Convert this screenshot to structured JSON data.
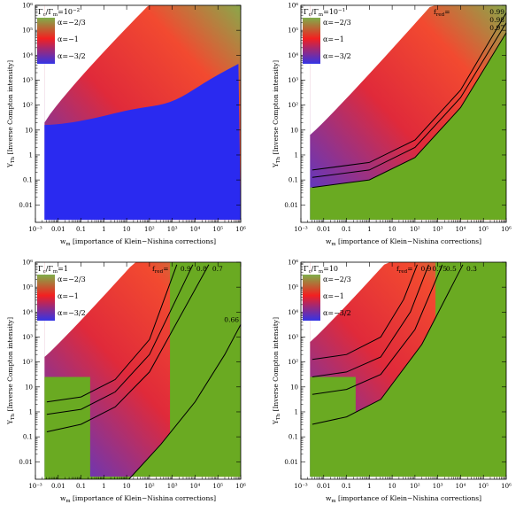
{
  "chart_data": [
    {
      "type": "heatmap",
      "panel": "top-left",
      "title": "Γc/Γm=10⁻²",
      "title_parts": {
        "g1": "Γ",
        "s1": "c",
        "sep": "/Γ",
        "s2": "m",
        "eq": "=10",
        "exp": "−2"
      },
      "xlabel": {
        "main": "w",
        "sub": "m",
        "rest": " [importance of Klein−Nishina corrections]"
      },
      "ylabel": {
        "main": "Y",
        "sub": "Th",
        "rest": " [Inverse Compton intensity]"
      },
      "x_range_log10": [
        -3,
        6
      ],
      "y_range_log10": [
        -2.7,
        6
      ],
      "x_ticks": [
        "10⁻³",
        "0.01",
        "0.1",
        "1",
        "10",
        "10²",
        "10³",
        "10⁴",
        "10⁵",
        "10⁶"
      ],
      "y_ticks": [
        "0.01",
        "0.1",
        "1",
        "10",
        "10²",
        "10³",
        "10⁴",
        "10⁵",
        "10⁶"
      ],
      "legend": [
        "α=−2/3",
        "α=−1",
        "α=−3/2"
      ],
      "legend_colors": [
        "#7fae4a",
        "#f22020",
        "#3434e6"
      ],
      "fred_label": "",
      "fred_lines": []
    },
    {
      "type": "heatmap",
      "panel": "top-right",
      "title": "Γc/Γm=10⁻¹",
      "title_parts": {
        "g1": "Γ",
        "s1": "c",
        "sep": "/Γ",
        "s2": "m",
        "eq": "=10",
        "exp": "−1"
      },
      "xlabel": {
        "main": "w",
        "sub": "m",
        "rest": " [importance of Klein−Nishina corrections]"
      },
      "ylabel": {
        "main": "Y",
        "sub": "Th",
        "rest": " [Inverse Compton intensity]"
      },
      "x_range_log10": [
        -3,
        6
      ],
      "y_range_log10": [
        -2.7,
        6
      ],
      "x_ticks": [
        "10⁻³",
        "0.01",
        "0.1",
        "1",
        "10",
        "10²",
        "10³",
        "10⁴",
        "10⁵",
        "10⁶"
      ],
      "y_ticks": [
        "0.01",
        "0.1",
        "1",
        "10",
        "10²",
        "10³",
        "10⁴",
        "10⁵",
        "10⁶"
      ],
      "legend": [
        "α=−2/3",
        "α=−1",
        "α=−3/2"
      ],
      "legend_colors": [
        "#7fae4a",
        "#f22020",
        "#3434e6"
      ],
      "fred_label": "f",
      "fred_sub": "red",
      "fred_eq": "=",
      "fred_lines": [
        {
          "label": "0.99",
          "points": [
            [
              -2.5,
              -0.6
            ],
            [
              0,
              -0.3
            ],
            [
              2,
              0.6
            ],
            [
              4,
              2.6
            ],
            [
              6,
              5.7
            ]
          ]
        },
        {
          "label": "0.98",
          "points": [
            [
              -2.5,
              -0.9
            ],
            [
              0,
              -0.6
            ],
            [
              2,
              0.3
            ],
            [
              4,
              2.3
            ],
            [
              6,
              5.3
            ]
          ]
        },
        {
          "label": "0.97",
          "points": [
            [
              -2.5,
              -1.3
            ],
            [
              0,
              -1.0
            ],
            [
              2,
              -0.1
            ],
            [
              4,
              1.9
            ],
            [
              6,
              4.9
            ]
          ]
        }
      ]
    },
    {
      "type": "heatmap",
      "panel": "bottom-left",
      "title": "Γc/Γm=1",
      "title_parts": {
        "g1": "Γ",
        "s1": "c",
        "sep": "/Γ",
        "s2": "m",
        "eq": "=1",
        "exp": ""
      },
      "xlabel": {
        "main": "w",
        "sub": "m",
        "rest": " [importance of Klein−Nishina corrections]"
      },
      "ylabel": {
        "main": "Y",
        "sub": "Th",
        "rest": " [Inverse Compton intensity]"
      },
      "x_range_log10": [
        -3,
        6
      ],
      "y_range_log10": [
        -2.7,
        6
      ],
      "x_ticks": [
        "10⁻³",
        "0.01",
        "0.1",
        "1",
        "10",
        "10²",
        "10³",
        "10⁴",
        "10⁵",
        "10⁶"
      ],
      "y_ticks": [
        "0.01",
        "0.1",
        "1",
        "10",
        "10²",
        "10³",
        "10⁴",
        "10⁵",
        "10⁶"
      ],
      "legend": [
        "α=−2/3",
        "α=−1",
        "α=−3/2"
      ],
      "legend_colors": [
        "#7fae4a",
        "#f22020",
        "#3434e6"
      ],
      "fred_label": "f",
      "fred_sub": "red",
      "fred_eq": "=",
      "fred_lines": [
        {
          "label": "0.9",
          "points": [
            [
              -2.5,
              0.4
            ],
            [
              -1,
              0.6
            ],
            [
              0.5,
              1.3
            ],
            [
              2,
              2.9
            ],
            [
              3.2,
              5.9
            ]
          ]
        },
        {
          "label": "0.8",
          "points": [
            [
              -2.5,
              -0.1
            ],
            [
              -1,
              0.1
            ],
            [
              0.5,
              0.8
            ],
            [
              2,
              2.3
            ],
            [
              3.9,
              5.9
            ]
          ]
        },
        {
          "label": "0.7",
          "points": [
            [
              -2.5,
              -0.8
            ],
            [
              -1,
              -0.5
            ],
            [
              0.5,
              0.2
            ],
            [
              2,
              1.6
            ],
            [
              4.6,
              5.9
            ]
          ]
        },
        {
          "label": "0.66",
          "points": [
            [
              1.1,
              -2.7
            ],
            [
              2.5,
              -1.3
            ],
            [
              4,
              0.4
            ],
            [
              5.3,
              2.3
            ],
            [
              6,
              3.5
            ]
          ]
        }
      ]
    },
    {
      "type": "heatmap",
      "panel": "bottom-right",
      "title": "Γc/Γm=10",
      "title_parts": {
        "g1": "Γ",
        "s1": "c",
        "sep": "/Γ",
        "s2": "m",
        "eq": "=10",
        "exp": ""
      },
      "xlabel": {
        "main": "w",
        "sub": "m",
        "rest": " [importance of Klein−Nishina corrections]"
      },
      "ylabel": {
        "main": "Y",
        "sub": "Th",
        "rest": " [Inverse Compton intensity]"
      },
      "x_range_log10": [
        -3,
        6
      ],
      "y_range_log10": [
        -2.7,
        6
      ],
      "x_ticks": [
        "10⁻³",
        "0.01",
        "0.1",
        "1",
        "10",
        "10²",
        "10³",
        "10⁴",
        "10⁵",
        "10⁶"
      ],
      "y_ticks": [
        "0.01",
        "0.1",
        "1",
        "10",
        "10²",
        "10³",
        "10⁴",
        "10⁵",
        "10⁶"
      ],
      "legend": [
        "α=−2/3",
        "α=−1",
        "α=−3/2"
      ],
      "legend_colors": [
        "#7fae4a",
        "#f22020",
        "#3434e6"
      ],
      "fred_label": "f",
      "fred_sub": "red",
      "fred_eq": "=",
      "fred_lines": [
        {
          "label": "0.9",
          "points": [
            [
              -2.5,
              2.1
            ],
            [
              -1,
              2.3
            ],
            [
              0.5,
              3.0
            ],
            [
              1.5,
              4.5
            ],
            [
              2.1,
              5.9
            ]
          ]
        },
        {
          "label": "0.75",
          "points": [
            [
              -2.5,
              1.4
            ],
            [
              -1,
              1.6
            ],
            [
              0.5,
              2.2
            ],
            [
              1.8,
              4.0
            ],
            [
              2.6,
              5.9
            ]
          ]
        },
        {
          "label": "0.5",
          "points": [
            [
              -2.5,
              0.7
            ],
            [
              -1,
              0.9
            ],
            [
              0.5,
              1.5
            ],
            [
              2.0,
              3.3
            ],
            [
              3.2,
              5.9
            ]
          ]
        },
        {
          "label": "0.3",
          "points": [
            [
              -2.5,
              -0.5
            ],
            [
              -1,
              -0.2
            ],
            [
              0.5,
              0.5
            ],
            [
              2.3,
              2.7
            ],
            [
              4.1,
              5.9
            ]
          ]
        }
      ]
    }
  ]
}
